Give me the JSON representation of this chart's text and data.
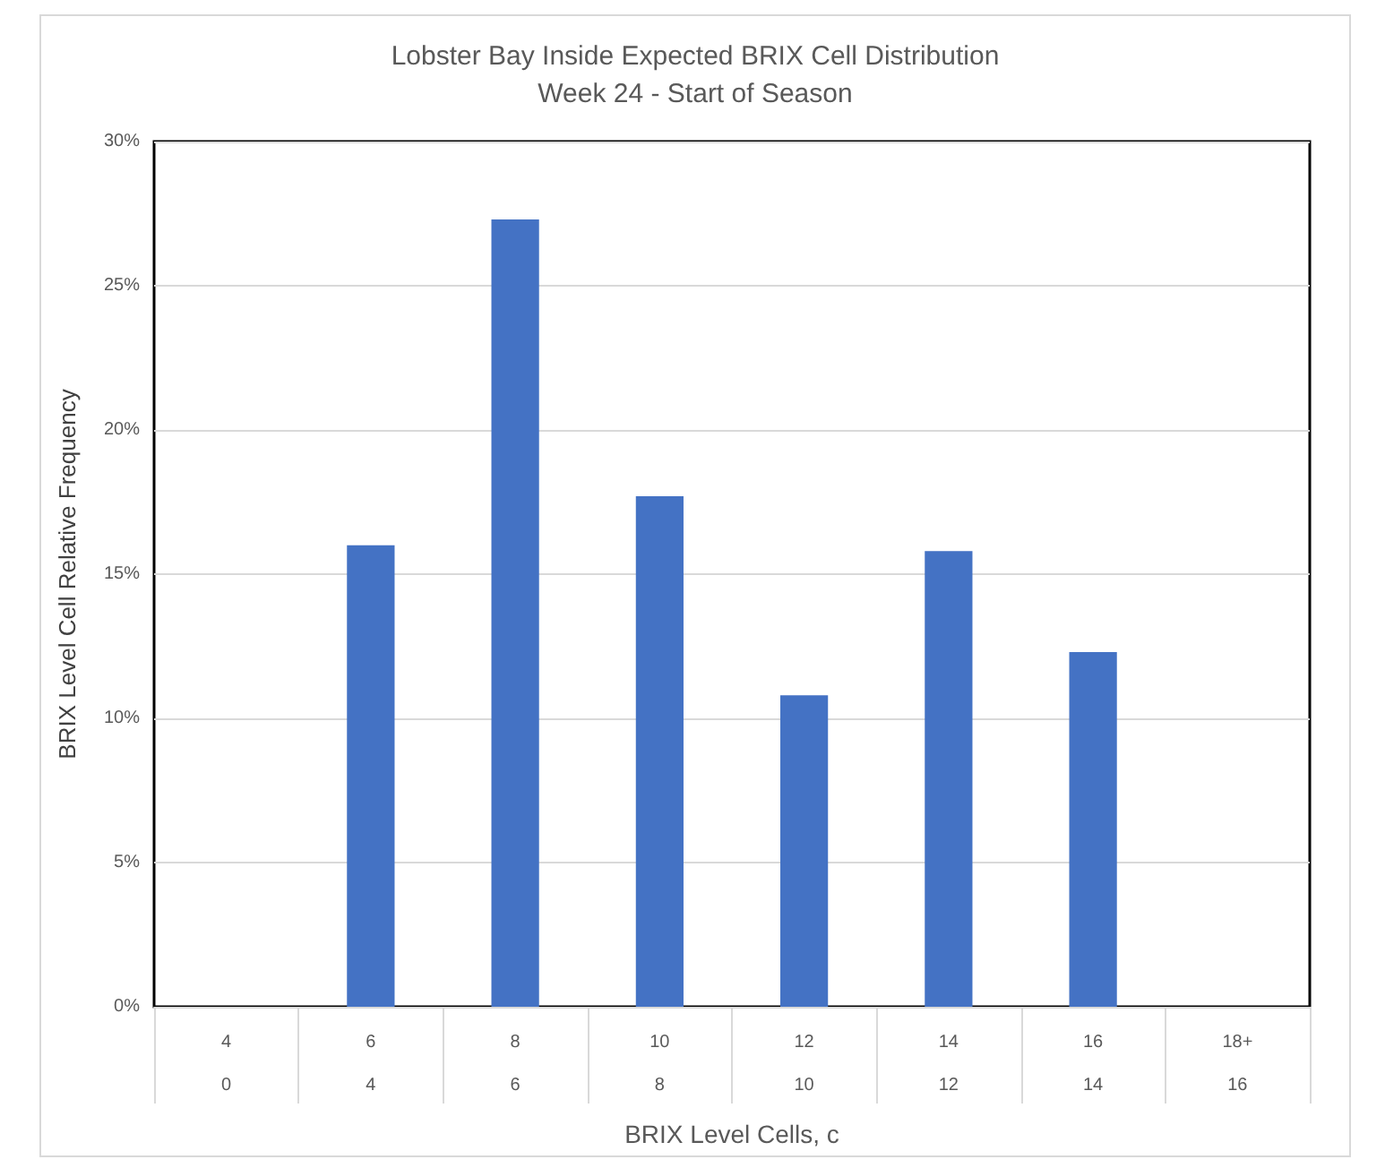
{
  "chart_data": {
    "type": "bar",
    "title": "Lobster Bay Inside Expected BRIX Cell Distribution",
    "subtitle": "Week 24 - Start of Season",
    "xlabel": "BRIX Level Cells, c",
    "ylabel": "BRIX Level Cell Relative Frequency",
    "categories": [
      "4\n0",
      "6\n4",
      "8\n6",
      "10\n8",
      "12\n10",
      "14\n12",
      "16\n14",
      "18+\n16"
    ],
    "values": [
      0,
      16.0,
      27.3,
      17.7,
      10.8,
      15.8,
      12.3,
      0
    ],
    "color": "#4472c4",
    "ylim": [
      0,
      30
    ],
    "yticks": [
      {
        "value": 0,
        "label": "0%"
      },
      {
        "value": 5,
        "label": "5%"
      },
      {
        "value": 10,
        "label": "10%"
      },
      {
        "value": 15,
        "label": "15%"
      },
      {
        "value": 20,
        "label": "20%"
      },
      {
        "value": 25,
        "label": "25%"
      },
      {
        "value": 30,
        "label": "30%"
      }
    ],
    "grid": "y"
  }
}
